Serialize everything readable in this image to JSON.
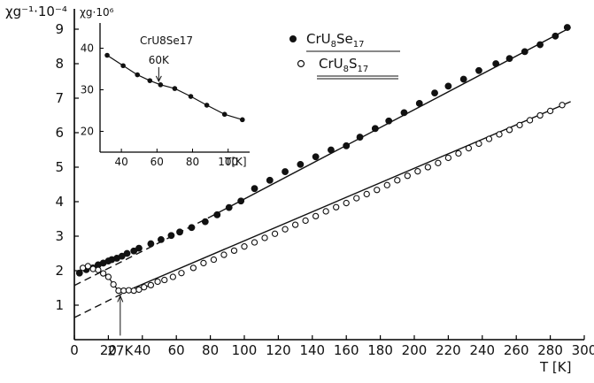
{
  "chart_data": [
    {
      "type": "scatter",
      "xlabel": "T [K]",
      "ylabel": "χg⁻¹·10⁻⁴",
      "xlim": [
        0,
        300
      ],
      "ylim": [
        0,
        9.6
      ],
      "x_ticks": [
        "0",
        "20",
        "40",
        "60",
        "80",
        "100",
        "120",
        "140",
        "160",
        "180",
        "200",
        "220",
        "240",
        "260",
        "280",
        "300"
      ],
      "y_ticks": [
        "1",
        "2",
        "3",
        "4",
        "5",
        "6",
        "7",
        "8",
        "9"
      ],
      "grid": false,
      "legend_position": "top-right",
      "series": [
        {
          "name": "CrU8Se17",
          "marker": "filled-circle",
          "x": [
            3,
            7,
            11,
            14,
            17,
            20,
            22,
            25,
            28,
            31,
            35,
            38,
            45,
            51,
            57,
            62,
            69,
            77,
            84,
            91,
            98,
            106,
            115,
            124,
            133,
            142,
            151,
            160,
            168,
            177,
            185,
            194,
            203,
            212,
            220,
            229,
            238,
            248,
            256,
            265,
            274,
            283,
            290
          ],
          "y": [
            1.93,
            2.03,
            2.08,
            2.17,
            2.22,
            2.28,
            2.32,
            2.36,
            2.42,
            2.5,
            2.57,
            2.65,
            2.78,
            2.9,
            3.02,
            3.12,
            3.25,
            3.42,
            3.62,
            3.83,
            4.02,
            4.38,
            4.62,
            4.87,
            5.08,
            5.3,
            5.5,
            5.62,
            5.87,
            6.12,
            6.34,
            6.58,
            6.85,
            7.15,
            7.35,
            7.55,
            7.8,
            8.0,
            8.15,
            8.35,
            8.55,
            8.8,
            9.05
          ]
        },
        {
          "name": "CrU8S17",
          "marker": "open-circle",
          "x": [
            5,
            8,
            11,
            14,
            17,
            20,
            23,
            26,
            29,
            32,
            35,
            38,
            41,
            45,
            49,
            53,
            58,
            63,
            70,
            76,
            82,
            88,
            94,
            100,
            106,
            112,
            118,
            124,
            130,
            136,
            142,
            148,
            154,
            160,
            166,
            172,
            178,
            184,
            190,
            196,
            202,
            208,
            214,
            220,
            226,
            232,
            238,
            244,
            250,
            256,
            262,
            268,
            274,
            280,
            287
          ],
          "y": [
            2.08,
            2.13,
            2.05,
            2.02,
            1.92,
            1.82,
            1.6,
            1.42,
            1.42,
            1.43,
            1.42,
            1.45,
            1.52,
            1.58,
            1.68,
            1.73,
            1.82,
            1.93,
            2.08,
            2.22,
            2.32,
            2.46,
            2.58,
            2.7,
            2.82,
            2.95,
            3.07,
            3.2,
            3.33,
            3.45,
            3.58,
            3.72,
            3.84,
            3.96,
            4.1,
            4.22,
            4.34,
            4.48,
            4.62,
            4.75,
            4.88,
            5.0,
            5.12,
            5.27,
            5.4,
            5.55,
            5.68,
            5.82,
            5.95,
            6.08,
            6.22,
            6.36,
            6.5,
            6.63,
            6.8
          ]
        }
      ],
      "fit_lines": [
        {
          "series": "CrU8Se17",
          "style": "solid",
          "x": [
            80,
            292
          ],
          "y": [
            3.56,
            9.05
          ]
        },
        {
          "series": "CrU8Se17",
          "style": "dashed",
          "x": [
            0,
            80
          ],
          "y": [
            1.57,
            3.56
          ]
        },
        {
          "series": "CrU8S17",
          "style": "solid",
          "x": [
            35,
            292
          ],
          "y": [
            1.5,
            6.9
          ]
        },
        {
          "series": "CrU8S17",
          "style": "dashed",
          "x": [
            0,
            35
          ],
          "y": [
            0.64,
            1.5
          ]
        }
      ],
      "annotations": [
        {
          "text": "27K",
          "x": 27,
          "y": 1.4
        }
      ]
    },
    {
      "type": "line",
      "title": "CrU8Se17",
      "xlabel": "T[K]",
      "ylabel": "χg·10⁶",
      "xlim": [
        28,
        112
      ],
      "ylim": [
        15,
        46
      ],
      "x_ticks": [
        "40",
        "60",
        "80",
        "100"
      ],
      "y_ticks": [
        "20",
        "30",
        "40"
      ],
      "series": [
        {
          "name": "CrU8Se17",
          "marker": "filled-circle",
          "x": [
            32,
            41,
            49,
            56,
            62,
            70,
            79,
            88,
            98,
            108
          ],
          "y": [
            38.3,
            35.8,
            33.6,
            32.2,
            31.2,
            30.3,
            28.4,
            26.3,
            24.1,
            22.8
          ]
        }
      ],
      "annotations": [
        {
          "text": "60K",
          "x": 61,
          "y": 31.2
        }
      ]
    }
  ],
  "legend": [
    {
      "label": "CrU8Se17",
      "main": "CrU",
      "sub1": "8",
      "mid": "Se",
      "sub2": "17",
      "marker": "filled-circle"
    },
    {
      "label": "CrU8S17",
      "main": "CrU",
      "sub1": "8",
      "mid": "S",
      "sub2": "17",
      "marker": "open-circle"
    }
  ],
  "axis_titles": {
    "main_y_left": "χg⁻¹·10⁻⁴",
    "main_x": "T [K]",
    "inset_y": "χg·10⁶",
    "inset_title": "CrU8Se17",
    "inset_x": "T[K]"
  }
}
